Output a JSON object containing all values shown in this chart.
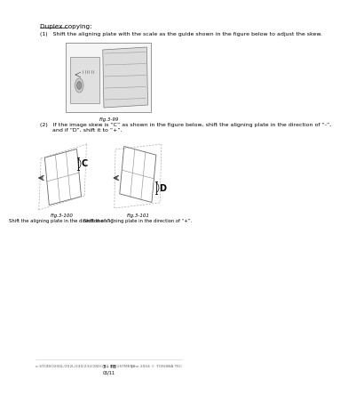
{
  "bg_color": "#ffffff",
  "title_heading": "Duplex copying:",
  "step1_text": "(1)   Shift the aligning plate with the scale as the guide shown in the figure below to adjust the skew.",
  "fig99_label": "Fig.3-99",
  "step2_line1": "(2)   If the image skew is “C” as shown in the figure below, shift the aligning plate in the direction of “-”,",
  "step2_line2": "       and if “D”, shift it to “+”.",
  "fig100_label": "Fig.3-100",
  "fig101_label": "Fig.3-101",
  "caption100": "Shift the aligning plate in the direction of “-”.",
  "caption101": "Shift the aligning plate in the direction of “+”.",
  "footer_left": "e-STUDIO200L/202L/230/232/280/282 ADJUSTMENT",
  "footer_center1": "3 - 78",
  "footer_center2": "05/11",
  "footer_right": "June 2004 © TOSHIBA TEC",
  "text_color": "#000000",
  "light_gray": "#aaaaaa",
  "mid_gray": "#888888",
  "dark_gray": "#444444"
}
